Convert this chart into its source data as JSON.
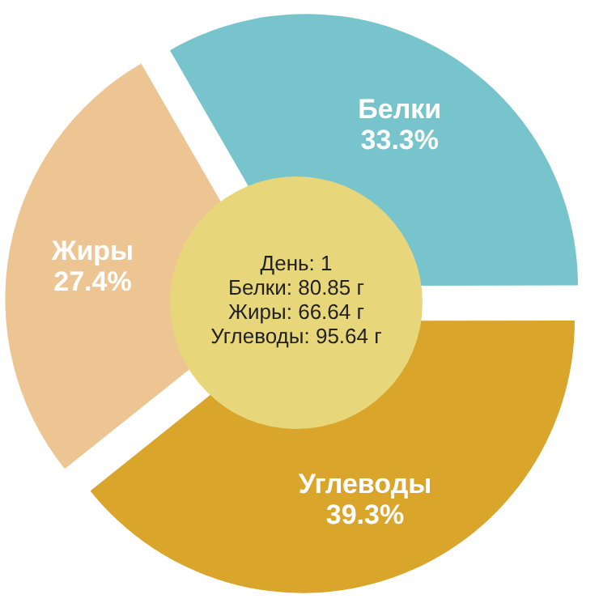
{
  "chart_data": {
    "type": "pie",
    "categories": [
      "Белки",
      "Углеводы",
      "Жиры"
    ],
    "values": [
      33.3,
      39.3,
      27.4
    ],
    "colors": [
      "#78c4cc",
      "#d9a52b",
      "#edc592"
    ],
    "value_labels": [
      "33.3%",
      "39.3%",
      "27.4%"
    ],
    "annotations": [
      "День: 1",
      "Белки: 80.85 г",
      "Жиры: 66.64 г",
      "Углеводы: 95.64 г"
    ]
  }
}
